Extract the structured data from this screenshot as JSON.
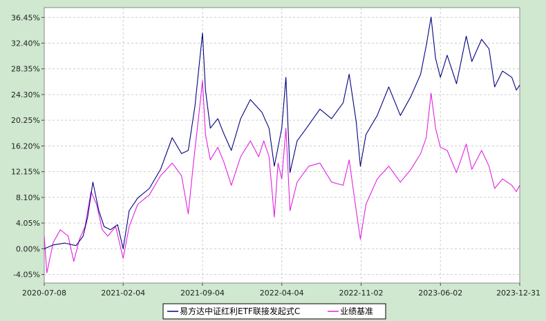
{
  "chart_data": {
    "type": "line",
    "title": "",
    "xlabel": "",
    "ylabel": "",
    "x_ticks": [
      "2020-07-08",
      "2021-02-04",
      "2021-09-04",
      "2022-04-04",
      "2022-11-02",
      "2023-06-02",
      "2023-12-31"
    ],
    "y_ticks": [
      "36.45%",
      "32.40%",
      "28.35%",
      "24.30%",
      "20.25%",
      "16.20%",
      "12.15%",
      "8.10%",
      "4.05%",
      "0.00%",
      "-4.05%"
    ],
    "ylim": [
      -5.4,
      38.0
    ],
    "xlim": [
      "2020-07-08",
      "2023-12-31"
    ],
    "grid": true,
    "legend_position": "bottom",
    "series": [
      {
        "name": "易方达中证红利ETF联接发起式C",
        "color": "#000080",
        "points": [
          [
            "2020-07-08",
            0.0
          ],
          [
            "2020-08-01",
            0.6
          ],
          [
            "2020-09-01",
            0.9
          ],
          [
            "2020-10-01",
            0.5
          ],
          [
            "2020-10-20",
            2.0
          ],
          [
            "2020-11-01",
            5.0
          ],
          [
            "2020-11-15",
            10.5
          ],
          [
            "2020-12-01",
            6.0
          ],
          [
            "2020-12-15",
            3.5
          ],
          [
            "2021-01-01",
            3.0
          ],
          [
            "2021-01-20",
            3.8
          ],
          [
            "2021-02-04",
            0.0
          ],
          [
            "2021-02-20",
            6.0
          ],
          [
            "2021-03-15",
            8.0
          ],
          [
            "2021-04-15",
            9.5
          ],
          [
            "2021-05-15",
            12.5
          ],
          [
            "2021-06-15",
            17.5
          ],
          [
            "2021-07-10",
            15.0
          ],
          [
            "2021-07-28",
            15.5
          ],
          [
            "2021-08-15",
            22.5
          ],
          [
            "2021-08-28",
            30.0
          ],
          [
            "2021-09-04",
            34.0
          ],
          [
            "2021-09-12",
            25.0
          ],
          [
            "2021-09-25",
            19.0
          ],
          [
            "2021-10-15",
            20.5
          ],
          [
            "2021-11-01",
            18.0
          ],
          [
            "2021-11-20",
            15.5
          ],
          [
            "2021-12-15",
            20.5
          ],
          [
            "2022-01-10",
            23.5
          ],
          [
            "2022-02-10",
            21.5
          ],
          [
            "2022-03-01",
            19.0
          ],
          [
            "2022-03-15",
            13.0
          ],
          [
            "2022-04-04",
            19.0
          ],
          [
            "2022-04-15",
            27.0
          ],
          [
            "2022-04-26",
            12.0
          ],
          [
            "2022-05-15",
            17.0
          ],
          [
            "2022-06-15",
            19.5
          ],
          [
            "2022-07-15",
            22.0
          ],
          [
            "2022-08-15",
            20.5
          ],
          [
            "2022-09-15",
            23.0
          ],
          [
            "2022-10-01",
            27.5
          ],
          [
            "2022-10-20",
            20.0
          ],
          [
            "2022-10-31",
            13.0
          ],
          [
            "2022-11-15",
            18.0
          ],
          [
            "2022-12-15",
            21.0
          ],
          [
            "2023-01-15",
            25.5
          ],
          [
            "2023-02-15",
            21.0
          ],
          [
            "2023-03-15",
            24.0
          ],
          [
            "2023-04-10",
            27.5
          ],
          [
            "2023-04-25",
            32.0
          ],
          [
            "2023-05-08",
            36.5
          ],
          [
            "2023-05-20",
            30.0
          ],
          [
            "2023-06-02",
            27.0
          ],
          [
            "2023-06-20",
            30.5
          ],
          [
            "2023-07-15",
            26.0
          ],
          [
            "2023-08-10",
            33.5
          ],
          [
            "2023-08-25",
            29.5
          ],
          [
            "2023-09-20",
            33.0
          ],
          [
            "2023-10-10",
            31.5
          ],
          [
            "2023-10-25",
            25.5
          ],
          [
            "2023-11-15",
            28.0
          ],
          [
            "2023-12-10",
            27.0
          ],
          [
            "2023-12-22",
            25.0
          ],
          [
            "2023-12-31",
            25.8
          ]
        ]
      },
      {
        "name": "业绩基准",
        "color": "#e020e0",
        "points": [
          [
            "2020-07-08",
            2.0
          ],
          [
            "2020-07-15",
            -3.8
          ],
          [
            "2020-08-01",
            1.0
          ],
          [
            "2020-08-20",
            3.0
          ],
          [
            "2020-09-10",
            2.0
          ],
          [
            "2020-09-25",
            -2.0
          ],
          [
            "2020-10-10",
            1.5
          ],
          [
            "2020-10-25",
            3.5
          ],
          [
            "2020-11-10",
            9.0
          ],
          [
            "2020-11-25",
            7.0
          ],
          [
            "2020-12-10",
            3.0
          ],
          [
            "2020-12-25",
            2.0
          ],
          [
            "2021-01-15",
            3.5
          ],
          [
            "2021-02-04",
            -1.5
          ],
          [
            "2021-02-20",
            3.5
          ],
          [
            "2021-03-15",
            7.0
          ],
          [
            "2021-04-15",
            8.5
          ],
          [
            "2021-05-15",
            11.5
          ],
          [
            "2021-06-15",
            13.5
          ],
          [
            "2021-07-10",
            11.5
          ],
          [
            "2021-07-28",
            5.5
          ],
          [
            "2021-08-10",
            13.0
          ],
          [
            "2021-08-25",
            21.0
          ],
          [
            "2021-09-04",
            26.5
          ],
          [
            "2021-09-12",
            18.0
          ],
          [
            "2021-09-25",
            14.0
          ],
          [
            "2021-10-15",
            16.0
          ],
          [
            "2021-11-01",
            13.5
          ],
          [
            "2021-11-20",
            10.0
          ],
          [
            "2021-12-15",
            14.5
          ],
          [
            "2022-01-10",
            17.0
          ],
          [
            "2022-02-01",
            14.5
          ],
          [
            "2022-02-15",
            17.0
          ],
          [
            "2022-03-01",
            14.5
          ],
          [
            "2022-03-15",
            5.0
          ],
          [
            "2022-03-25",
            13.5
          ],
          [
            "2022-04-04",
            11.0
          ],
          [
            "2022-04-15",
            19.0
          ],
          [
            "2022-04-26",
            6.0
          ],
          [
            "2022-05-15",
            10.5
          ],
          [
            "2022-06-15",
            13.0
          ],
          [
            "2022-07-15",
            13.5
          ],
          [
            "2022-08-15",
            10.5
          ],
          [
            "2022-09-15",
            10.0
          ],
          [
            "2022-10-01",
            14.0
          ],
          [
            "2022-10-20",
            6.0
          ],
          [
            "2022-10-31",
            1.5
          ],
          [
            "2022-11-15",
            7.0
          ],
          [
            "2022-12-15",
            11.0
          ],
          [
            "2023-01-15",
            13.0
          ],
          [
            "2023-02-15",
            10.5
          ],
          [
            "2023-03-15",
            12.5
          ],
          [
            "2023-04-10",
            15.0
          ],
          [
            "2023-04-25",
            17.5
          ],
          [
            "2023-05-08",
            24.5
          ],
          [
            "2023-05-20",
            19.0
          ],
          [
            "2023-06-02",
            16.0
          ],
          [
            "2023-06-20",
            15.5
          ],
          [
            "2023-07-15",
            12.0
          ],
          [
            "2023-08-10",
            16.5
          ],
          [
            "2023-08-25",
            12.5
          ],
          [
            "2023-09-20",
            15.5
          ],
          [
            "2023-10-10",
            13.0
          ],
          [
            "2023-10-25",
            9.5
          ],
          [
            "2023-11-15",
            11.0
          ],
          [
            "2023-12-10",
            10.0
          ],
          [
            "2023-12-22",
            9.0
          ],
          [
            "2023-12-31",
            10.0
          ]
        ]
      }
    ]
  }
}
